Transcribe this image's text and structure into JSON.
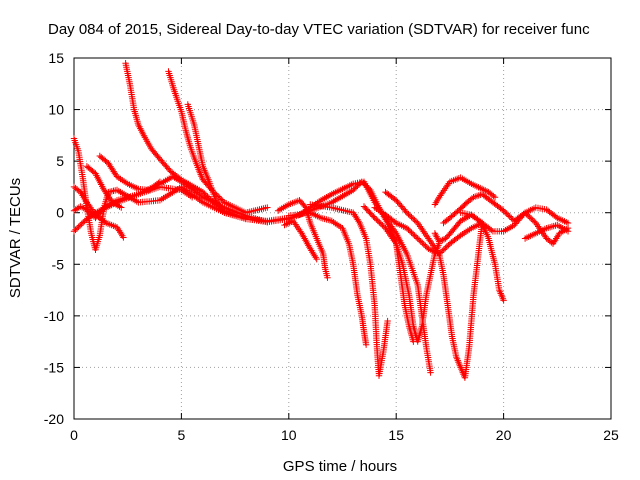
{
  "chart_data": {
    "type": "scatter",
    "title": "Day 084 of 2015, Sidereal Day-to-day VTEC variation (SDTVAR) for receiver func",
    "xlabel": "GPS time / hours",
    "ylabel": "SDTVAR / TECUs",
    "xlim": [
      0,
      25
    ],
    "ylim": [
      -20,
      15
    ],
    "xticks": [
      0,
      5,
      10,
      15,
      20,
      25
    ],
    "yticks": [
      -20,
      -15,
      -10,
      -5,
      0,
      5,
      10,
      15
    ],
    "grid": true,
    "marker": "plus",
    "color": "#ff0000",
    "series": [
      {
        "name": "track 1",
        "points": [
          [
            0,
            7.2
          ],
          [
            0.2,
            6.0
          ],
          [
            0.4,
            3.5
          ],
          [
            0.6,
            0.5
          ],
          [
            0.8,
            -2.0
          ],
          [
            1.0,
            -3.6
          ],
          [
            1.2,
            -2.2
          ],
          [
            1.4,
            0.5
          ],
          [
            1.6,
            2.0
          ],
          [
            2.0,
            2.2
          ],
          [
            3.0,
            1.0
          ],
          [
            4.0,
            1.2
          ],
          [
            5.0,
            2.5
          ],
          [
            6.0,
            1.0
          ],
          [
            7.0,
            0.0
          ],
          [
            8.0,
            -0.6
          ],
          [
            9.0,
            -0.9
          ],
          [
            10.0,
            -0.6
          ],
          [
            11.0,
            0.2
          ],
          [
            12.0,
            1.0
          ],
          [
            13.0,
            2.2
          ],
          [
            13.4,
            3.0
          ],
          [
            13.8,
            2.2
          ],
          [
            14.2,
            0.5
          ],
          [
            14.6,
            -1.0
          ],
          [
            15.0,
            -3.0
          ],
          [
            15.2,
            -6.0
          ],
          [
            15.4,
            -9.0
          ],
          [
            15.6,
            -11.0
          ],
          [
            15.8,
            -12.5
          ]
        ]
      },
      {
        "name": "track 2",
        "points": [
          [
            0,
            2.5
          ],
          [
            0.3,
            2.0
          ],
          [
            0.6,
            1.0
          ],
          [
            1.0,
            -0.2
          ],
          [
            1.5,
            -1.0
          ],
          [
            2.0,
            -1.4
          ],
          [
            2.3,
            -2.4
          ]
        ]
      },
      {
        "name": "track 3",
        "points": [
          [
            0,
            0.2
          ],
          [
            0.3,
            0.6
          ],
          [
            0.6,
            0.3
          ],
          [
            1.0,
            -0.5
          ],
          [
            1.4,
            0.5
          ],
          [
            2.0,
            1.2
          ],
          [
            3.0,
            1.8
          ],
          [
            4.0,
            2.8
          ],
          [
            4.6,
            3.5
          ],
          [
            5.0,
            3.0
          ],
          [
            6.0,
            1.5
          ],
          [
            7.0,
            0.5
          ],
          [
            8.0,
            -0.3
          ],
          [
            9.0,
            -0.9
          ]
        ]
      },
      {
        "name": "track 4",
        "points": [
          [
            0,
            -1.8
          ],
          [
            0.5,
            -0.8
          ],
          [
            1.0,
            0.0
          ],
          [
            1.5,
            0.5
          ],
          [
            2.0,
            1.0
          ],
          [
            3.0,
            1.8
          ],
          [
            4.0,
            2.5
          ],
          [
            5.0,
            2.2
          ],
          [
            5.5,
            1.5
          ]
        ]
      },
      {
        "name": "track 5",
        "points": [
          [
            1.2,
            5.5
          ],
          [
            1.6,
            4.8
          ],
          [
            2.0,
            3.5
          ],
          [
            2.5,
            2.8
          ],
          [
            3.0,
            2.3
          ],
          [
            3.5,
            2.2
          ],
          [
            4.0,
            3.0
          ]
        ]
      },
      {
        "name": "track 6",
        "points": [
          [
            0.6,
            4.5
          ],
          [
            1.0,
            3.8
          ],
          [
            1.4,
            2.2
          ],
          [
            1.8,
            1.0
          ],
          [
            2.2,
            0.5
          ]
        ]
      },
      {
        "name": "track 7",
        "points": [
          [
            2.4,
            14.5
          ],
          [
            2.6,
            12.5
          ],
          [
            2.8,
            10.0
          ],
          [
            3.0,
            8.5
          ],
          [
            3.3,
            7.3
          ],
          [
            3.6,
            6.2
          ],
          [
            4.0,
            5.2
          ],
          [
            4.5,
            4.0
          ],
          [
            5.0,
            3.2
          ],
          [
            6.0,
            2.0
          ],
          [
            7.0,
            0.0
          ],
          [
            8.0,
            -0.5
          ]
        ]
      },
      {
        "name": "track 8",
        "points": [
          [
            4.4,
            13.7
          ],
          [
            4.6,
            12.3
          ],
          [
            4.8,
            11.0
          ],
          [
            5.0,
            9.8
          ],
          [
            5.2,
            8.0
          ],
          [
            5.4,
            6.5
          ],
          [
            5.6,
            5.3
          ],
          [
            5.8,
            4.2
          ],
          [
            6.0,
            3.2
          ],
          [
            6.5,
            2.0
          ],
          [
            7.0,
            1.0
          ],
          [
            8.0,
            0.0
          ],
          [
            9.0,
            0.5
          ]
        ]
      },
      {
        "name": "track 9",
        "points": [
          [
            5.3,
            10.5
          ],
          [
            5.6,
            8.5
          ],
          [
            5.8,
            6.5
          ],
          [
            6.0,
            4.5
          ],
          [
            6.3,
            3.0
          ],
          [
            6.6,
            1.2
          ],
          [
            7.0,
            0.2
          ],
          [
            8.0,
            -0.6
          ],
          [
            9.0,
            -0.8
          ],
          [
            10.0,
            -0.5
          ]
        ]
      },
      {
        "name": "track 10",
        "points": [
          [
            9.5,
            0.2
          ],
          [
            10.0,
            0.8
          ],
          [
            10.5,
            1.2
          ],
          [
            10.8,
            0.5
          ],
          [
            11.0,
            -1.0
          ],
          [
            11.3,
            -2.5
          ],
          [
            11.6,
            -4.0
          ],
          [
            11.7,
            -5.5
          ],
          [
            11.8,
            -6.3
          ]
        ]
      },
      {
        "name": "track 11",
        "points": [
          [
            9.8,
            -1.2
          ],
          [
            10.2,
            -0.8
          ],
          [
            10.6,
            -2.0
          ],
          [
            11.0,
            -3.5
          ],
          [
            11.3,
            -4.5
          ]
        ]
      },
      {
        "name": "track 12",
        "points": [
          [
            10.0,
            -0.3
          ],
          [
            11.0,
            0.0
          ],
          [
            11.5,
            -0.5
          ],
          [
            12.0,
            -0.8
          ],
          [
            12.5,
            -1.5
          ],
          [
            12.8,
            -3.0
          ],
          [
            13.0,
            -5.0
          ],
          [
            13.2,
            -8.0
          ],
          [
            13.4,
            -10.0
          ],
          [
            13.5,
            -11.5
          ],
          [
            13.6,
            -12.8
          ]
        ]
      },
      {
        "name": "track 13",
        "points": [
          [
            10.5,
            -0.2
          ],
          [
            11.0,
            0.5
          ],
          [
            11.5,
            1.2
          ],
          [
            12.0,
            1.8
          ],
          [
            12.5,
            2.3
          ],
          [
            13.0,
            2.8
          ],
          [
            13.5,
            3.0
          ],
          [
            14.0,
            1.0
          ],
          [
            14.5,
            -0.5
          ],
          [
            15.0,
            -2.0
          ],
          [
            15.5,
            -4.0
          ],
          [
            16.0,
            -7.0
          ],
          [
            16.2,
            -10.0
          ],
          [
            16.4,
            -13.0
          ],
          [
            16.6,
            -15.5
          ]
        ]
      },
      {
        "name": "track 14",
        "points": [
          [
            11.0,
            0.8
          ],
          [
            12.0,
            0.5
          ],
          [
            13.0,
            0.0
          ],
          [
            13.3,
            -1.0
          ],
          [
            13.6,
            -2.5
          ],
          [
            13.8,
            -5.0
          ],
          [
            14.0,
            -9.0
          ],
          [
            14.1,
            -13.0
          ],
          [
            14.2,
            -15.8
          ],
          [
            14.4,
            -13.5
          ],
          [
            14.6,
            -10.5
          ]
        ]
      },
      {
        "name": "track 15",
        "points": [
          [
            13.5,
            0.6
          ],
          [
            14.0,
            -0.5
          ],
          [
            14.5,
            -1.5
          ],
          [
            15.0,
            -3.0
          ],
          [
            15.3,
            -5.0
          ],
          [
            15.6,
            -8.0
          ],
          [
            15.8,
            -11.0
          ],
          [
            16.0,
            -12.5
          ],
          [
            16.2,
            -11.0
          ],
          [
            16.4,
            -8.0
          ],
          [
            16.6,
            -6.0
          ],
          [
            16.8,
            -4.0
          ],
          [
            17.0,
            -3.0
          ]
        ]
      },
      {
        "name": "track 16",
        "points": [
          [
            14.0,
            0.5
          ],
          [
            14.5,
            -0.2
          ],
          [
            15.0,
            -1.0
          ],
          [
            15.5,
            -1.5
          ],
          [
            16.0,
            -2.5
          ],
          [
            16.5,
            -3.5
          ],
          [
            17.0,
            -4.0
          ],
          [
            17.5,
            -3.0
          ],
          [
            18.0,
            -2.2
          ],
          [
            18.5,
            -1.5
          ],
          [
            19.0,
            -1.0
          ]
        ]
      },
      {
        "name": "track 17",
        "points": [
          [
            14.5,
            2.0
          ],
          [
            15.0,
            1.2
          ],
          [
            15.5,
            0.0
          ],
          [
            16.0,
            -1.0
          ],
          [
            16.5,
            -2.5
          ],
          [
            17.0,
            -4.0
          ],
          [
            17.2,
            -6.0
          ],
          [
            17.4,
            -9.0
          ],
          [
            17.6,
            -12.0
          ],
          [
            17.8,
            -14.0
          ],
          [
            18.0,
            -15.0
          ],
          [
            18.2,
            -16.0
          ],
          [
            18.4,
            -13.0
          ],
          [
            18.6,
            -8.0
          ],
          [
            18.8,
            -4.5
          ],
          [
            19.0,
            -1.0
          ]
        ]
      },
      {
        "name": "track 18",
        "points": [
          [
            16.8,
            0.8
          ],
          [
            17.0,
            1.5
          ],
          [
            17.5,
            3.0
          ],
          [
            18.0,
            3.4
          ],
          [
            18.5,
            2.8
          ],
          [
            19.0,
            2.3
          ],
          [
            19.3,
            2.0
          ],
          [
            19.6,
            1.5
          ]
        ]
      },
      {
        "name": "track 19",
        "points": [
          [
            17.2,
            -1.0
          ],
          [
            17.5,
            -0.5
          ],
          [
            18.0,
            0.4
          ],
          [
            18.3,
            1.0
          ],
          [
            18.6,
            1.5
          ],
          [
            19.0,
            1.8
          ],
          [
            19.5,
            1.0
          ],
          [
            20.0,
            0.2
          ],
          [
            20.5,
            -0.8
          ],
          [
            21.0,
            0.0
          ],
          [
            21.5,
            0.5
          ],
          [
            22.0,
            0.3
          ],
          [
            22.5,
            -0.5
          ],
          [
            23.0,
            -1.0
          ]
        ]
      },
      {
        "name": "track 20",
        "points": [
          [
            16.8,
            -2.0
          ],
          [
            17.0,
            -2.8
          ],
          [
            17.3,
            -2.5
          ],
          [
            17.6,
            -1.8
          ],
          [
            18.0,
            -0.8
          ],
          [
            18.5,
            -0.2
          ],
          [
            19.0,
            -1.0
          ],
          [
            19.3,
            -2.5
          ],
          [
            19.6,
            -5.0
          ],
          [
            19.8,
            -7.5
          ],
          [
            20.0,
            -8.5
          ]
        ]
      },
      {
        "name": "track 21",
        "points": [
          [
            18.0,
            0.0
          ],
          [
            18.5,
            -0.2
          ],
          [
            19.0,
            -1.0
          ],
          [
            19.5,
            -1.8
          ],
          [
            20.0,
            -1.8
          ],
          [
            20.5,
            -1.2
          ],
          [
            21.0,
            0.0
          ],
          [
            21.5,
            -1.0
          ],
          [
            22.0,
            -2.5
          ],
          [
            22.3,
            -3.0
          ],
          [
            22.6,
            -2.0
          ],
          [
            23.0,
            -1.5
          ]
        ]
      },
      {
        "name": "track 22",
        "points": [
          [
            21.0,
            -2.5
          ],
          [
            21.5,
            -2.0
          ],
          [
            22.0,
            -1.5
          ],
          [
            22.5,
            -1.2
          ],
          [
            23.0,
            -1.8
          ]
        ]
      }
    ]
  }
}
